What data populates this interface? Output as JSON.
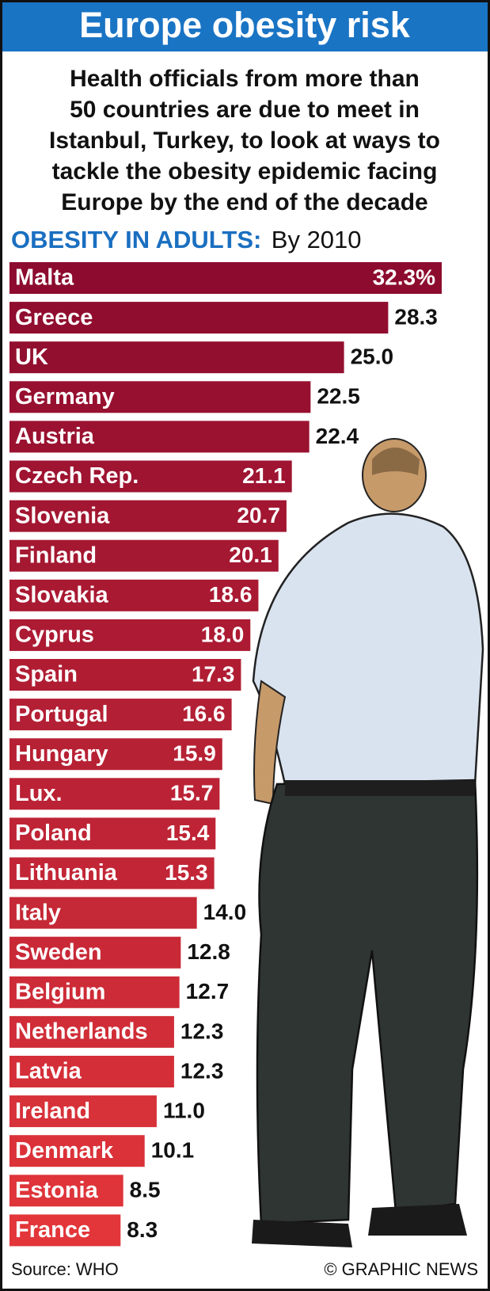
{
  "chart_data": {
    "type": "bar",
    "title": "Europe obesity risk",
    "subtitle": [
      "Health officials from more than",
      "50 countries are due to meet in",
      "Istanbul, Turkey, to look at ways to",
      "tackle the obesity epidemic facing",
      "Europe by the end of the decade"
    ],
    "heading": "OBESITY IN ADULTS:",
    "heading_note": "By 2010",
    "categories": [
      "Malta",
      "Greece",
      "UK",
      "Germany",
      "Austria",
      "Czech Rep.",
      "Slovenia",
      "Finland",
      "Slovakia",
      "Cyprus",
      "Spain",
      "Portugal",
      "Hungary",
      "Lux.",
      "Poland",
      "Lithuania",
      "Italy",
      "Sweden",
      "Belgium",
      "Netherlands",
      "Latvia",
      "Ireland",
      "Denmark",
      "Estonia",
      "France"
    ],
    "values": [
      32.3,
      28.3,
      25.0,
      22.5,
      22.4,
      21.1,
      20.7,
      20.1,
      18.6,
      18.0,
      17.3,
      16.6,
      15.9,
      15.7,
      15.4,
      15.3,
      14.0,
      12.8,
      12.7,
      12.3,
      12.3,
      11.0,
      10.1,
      8.5,
      8.3
    ],
    "value_labels": [
      "32.3%",
      "28.3",
      "25.0",
      "22.5",
      "22.4",
      "21.1",
      "20.7",
      "20.1",
      "18.6",
      "18.0",
      "17.3",
      "16.6",
      "15.9",
      "15.7",
      "15.4",
      "15.3",
      "14.0",
      "12.8",
      "12.7",
      "12.3",
      "12.3",
      "11.0",
      "10.1",
      "8.5",
      "8.3"
    ],
    "colors": [
      "#8c0b2e",
      "#e2363a"
    ],
    "source": "Source: WHO",
    "credit": "© GRAPHIC NEWS"
  }
}
